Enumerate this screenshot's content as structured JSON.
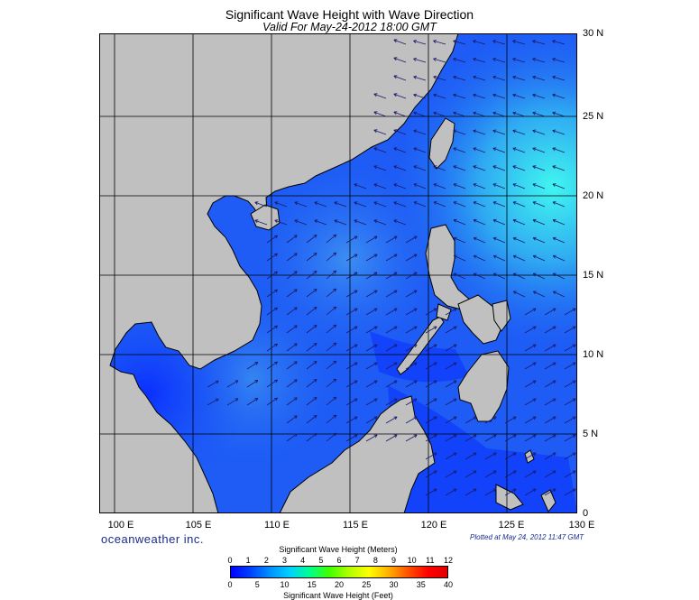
{
  "title": "Significant Wave Height with Wave Direction",
  "subtitle": "Valid For May-24-2012 18:00 GMT",
  "lat_labels": [
    "30 N",
    "25 N",
    "20 N",
    "15 N",
    "10 N",
    "5 N",
    "0"
  ],
  "lon_labels": [
    "100 E",
    "105 E",
    "110 E",
    "115 E",
    "120 E",
    "125 E",
    "130 E"
  ],
  "map_extent": {
    "lon": [
      99,
      129.5
    ],
    "lat": [
      0,
      30
    ]
  },
  "brand": "oceanweather inc.",
  "plotted_note": "Plotted at May 24, 2012 11:47 GMT",
  "colorbar": {
    "title_meters": "Significant Wave Height (Meters)",
    "title_feet": "Significant Wave Height (Feet)",
    "meters_ticks": [
      "0",
      "1",
      "2",
      "3",
      "4",
      "5",
      "6",
      "7",
      "8",
      "9",
      "10",
      "11",
      "12"
    ],
    "feet_ticks": [
      "0",
      "5",
      "10",
      "15",
      "20",
      "25",
      "30",
      "35",
      "40"
    ],
    "colors": [
      "#0000ff",
      "#0040ff",
      "#0090ff",
      "#00d0ff",
      "#00ff90",
      "#40ff00",
      "#b0ff00",
      "#ffff00",
      "#ffb000",
      "#ff5000",
      "#ff0000",
      "#e00000"
    ]
  },
  "colors": {
    "land": "#c0c0c0",
    "sea_low": "#0a2fff",
    "sea_mid": "#1e5cf5",
    "sea_high": "#2fa8f2",
    "sea_peak": "#3ff5f0",
    "arrow": "#1a1a6a",
    "grid": "#000000"
  }
}
